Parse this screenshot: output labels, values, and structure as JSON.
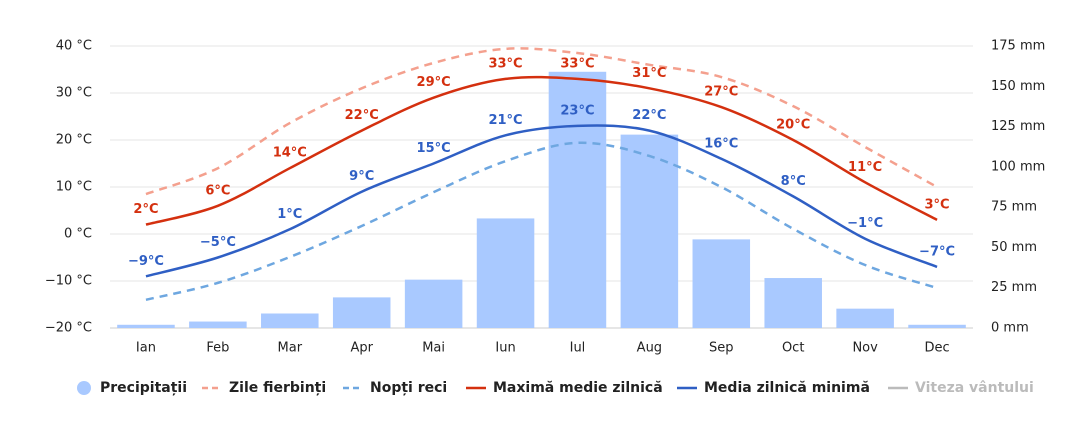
{
  "chart_data": {
    "type": "combo",
    "categories": [
      "Ian",
      "Feb",
      "Mar",
      "Apr",
      "Mai",
      "Iun",
      "Iul",
      "Aug",
      "Sep",
      "Oct",
      "Nov",
      "Dec"
    ],
    "ylim": [
      -20,
      40
    ],
    "yticks": [
      {
        "value": -20,
        "label": "−20 °C"
      },
      {
        "value": -10,
        "label": "−10 °C"
      },
      {
        "value": 0,
        "label": "0 °C"
      },
      {
        "value": 10,
        "label": "10 °C"
      },
      {
        "value": 20,
        "label": "20 °C"
      },
      {
        "value": 30,
        "label": "30 °C"
      },
      {
        "value": 40,
        "label": "40 °C"
      }
    ],
    "y2lim": [
      0,
      175
    ],
    "y2ticks": [
      {
        "value": 0,
        "label": "0 mm"
      },
      {
        "value": 25,
        "label": "25 mm"
      },
      {
        "value": 50,
        "label": "50 mm"
      },
      {
        "value": 75,
        "label": "75 mm"
      },
      {
        "value": 100,
        "label": "100 mm"
      },
      {
        "value": 125,
        "label": "125 mm"
      },
      {
        "value": 150,
        "label": "150 mm"
      },
      {
        "value": 175,
        "label": "175 mm"
      }
    ],
    "grid": true,
    "legend": "bottom",
    "series": [
      {
        "name": "Precipitații",
        "type": "bar",
        "axis": "y2",
        "color": "#a9c9ff",
        "values": [
          2,
          4,
          9,
          19,
          30,
          68,
          159,
          120,
          55,
          31,
          12,
          2
        ]
      },
      {
        "name": "Zile fierbinți",
        "type": "line",
        "dashed": true,
        "color": "#f4a08e",
        "values": [
          8.5,
          14,
          23.6,
          31,
          36.4,
          39.4,
          38.5,
          36,
          33.4,
          27.2,
          18.5,
          10
        ]
      },
      {
        "name": "Nopți reci",
        "type": "line",
        "dashed": true,
        "color": "#6ea7e0",
        "values": [
          -14,
          -10.4,
          -4.9,
          1.7,
          8.9,
          15.5,
          19.4,
          16.6,
          10,
          1.1,
          -6.6,
          -11.5
        ]
      },
      {
        "name": "Maximă medie zilnică",
        "type": "line",
        "color": "#d4300f",
        "values": [
          2,
          6,
          14,
          22,
          29,
          33,
          33,
          31,
          27,
          20,
          11,
          3
        ],
        "value_labels": [
          "2°C",
          "6°C",
          "14°C",
          "22°C",
          "29°C",
          "33°C",
          "33°C",
          "31°C",
          "27°C",
          "20°C",
          "11°C",
          "3°C"
        ]
      },
      {
        "name": "Media zilnică minimă",
        "type": "line",
        "color": "#2f5fc4",
        "values": [
          -9,
          -5,
          1,
          9,
          15,
          21,
          23,
          22,
          16,
          8,
          -1,
          -7
        ],
        "value_labels": [
          "−9°C",
          "−5°C",
          "1°C",
          "9°C",
          "15°C",
          "21°C",
          "23°C",
          "22°C",
          "16°C",
          "8°C",
          "−1°C",
          "−7°C"
        ]
      },
      {
        "name": "Viteza vântului",
        "type": "line",
        "hidden": true,
        "color": "#bbbbbb"
      }
    ]
  }
}
